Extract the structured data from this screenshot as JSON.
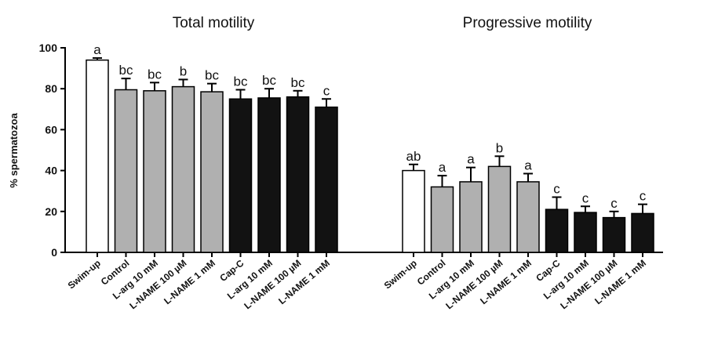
{
  "chart_data": {
    "type": "bar",
    "ylabel": "% spermatozoa",
    "ylim": [
      0,
      100
    ],
    "yticks": [
      0,
      20,
      40,
      60,
      80,
      100
    ],
    "categories": [
      "Swim-up",
      "Control",
      "L-arg 10 mM",
      "L-NAME 100 µM",
      "L-NAME 1 mM",
      "Cap-C",
      "L-arg 10 mM",
      "L-NAME 100 µM",
      "L-NAME 1 mM"
    ],
    "bar_fills": [
      "white",
      "gray",
      "gray",
      "gray",
      "gray",
      "black",
      "black",
      "black",
      "black"
    ],
    "panels": [
      {
        "title": "Total motility",
        "values": [
          94,
          79.5,
          79,
          81,
          78.5,
          75,
          75.5,
          76,
          71
        ],
        "errors": [
          1,
          5.5,
          4,
          3.5,
          4,
          4.5,
          4.5,
          3,
          4
        ],
        "letters": [
          "a",
          "bc",
          "bc",
          "b",
          "bc",
          "bc",
          "bc",
          "bc",
          "c"
        ]
      },
      {
        "title": "Progressive motility",
        "values": [
          40,
          32,
          34.5,
          42,
          34.5,
          21,
          19.5,
          17,
          19
        ],
        "errors": [
          3,
          5.5,
          7,
          5,
          4,
          6,
          3,
          3,
          4.5
        ],
        "letters": [
          "ab",
          "a",
          "a",
          "b",
          "a",
          "c",
          "c",
          "c",
          "c"
        ]
      }
    ],
    "colors": {
      "white": "#ffffff",
      "gray": "#b0b0b0",
      "black": "#121212",
      "axis": "#000000"
    },
    "grid": false,
    "legend": "none"
  }
}
